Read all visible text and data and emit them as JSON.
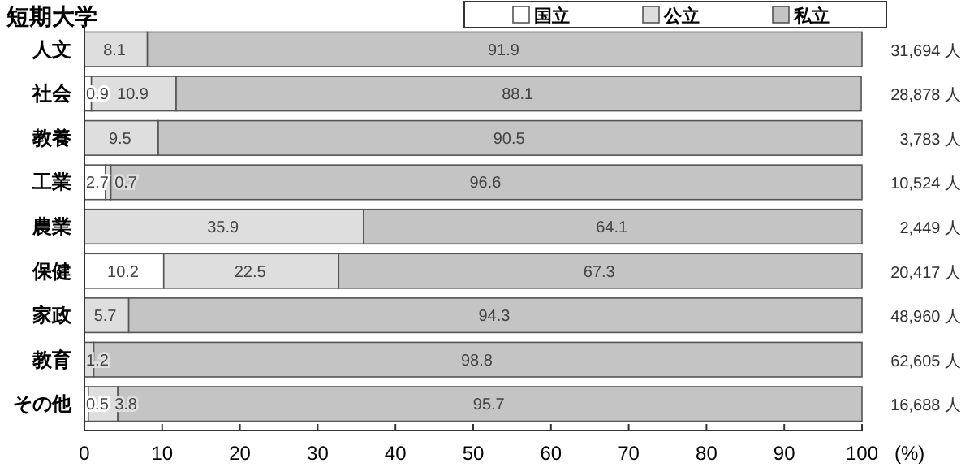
{
  "chart_data": {
    "type": "bar",
    "orientation": "horizontal",
    "stacked": true,
    "title": "短期大学",
    "xlabel": "(%)",
    "categories": [
      "人文",
      "社会",
      "教養",
      "工業",
      "農業",
      "保健",
      "家政",
      "教育",
      "その他"
    ],
    "series": [
      {
        "name": "国立",
        "color": "#ffffff",
        "values": [
          null,
          0.9,
          null,
          2.7,
          null,
          10.2,
          null,
          null,
          0.5
        ]
      },
      {
        "name": "公立",
        "color": "#dedede",
        "values": [
          8.1,
          10.9,
          9.5,
          0.7,
          35.9,
          22.5,
          5.7,
          1.2,
          3.8
        ]
      },
      {
        "name": "私立",
        "color": "#c4c4c4",
        "values": [
          91.9,
          88.1,
          90.5,
          96.6,
          64.1,
          67.3,
          94.3,
          98.8,
          95.7
        ]
      }
    ],
    "xlim": [
      0,
      100
    ],
    "xticks": [
      0,
      10,
      20,
      30,
      40,
      50,
      60,
      70,
      80,
      90,
      100
    ],
    "data_labels": true,
    "legend": "top right",
    "grid": false,
    "annotations": [
      "31,694 人",
      "28,878 人",
      "3,783 人",
      "10,524 人",
      "2,449 人",
      "20,417 人",
      "48,960 人",
      "62,605 人",
      "16,688 人"
    ]
  }
}
